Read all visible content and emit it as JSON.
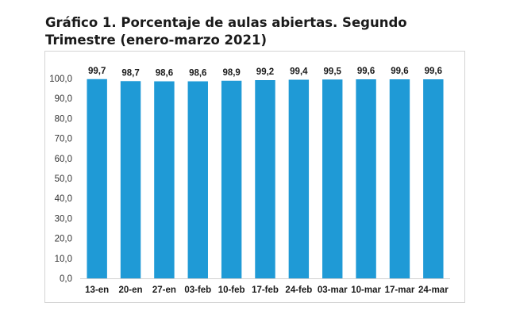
{
  "chart_data": {
    "type": "bar",
    "title": "Gráfico 1. Porcentaje de aulas abiertas. Segundo Trimestre (enero-marzo 2021)",
    "categories": [
      "13-en",
      "20-en",
      "27-en",
      "03-feb",
      "10-feb",
      "17-feb",
      "24-feb",
      "03-mar",
      "10-mar",
      "17-mar",
      "24-mar"
    ],
    "values": [
      99.7,
      98.7,
      98.6,
      98.6,
      98.9,
      99.2,
      99.4,
      99.5,
      99.6,
      99.6,
      99.6
    ],
    "data_labels": [
      "99,7",
      "98,7",
      "98,6",
      "98,6",
      "98,9",
      "99,2",
      "99,4",
      "99,5",
      "99,6",
      "99,6",
      "99,6"
    ],
    "ylim": [
      0,
      100
    ],
    "yticks": [
      0,
      10,
      20,
      30,
      40,
      50,
      60,
      70,
      80,
      90,
      100
    ],
    "ytick_labels": [
      "0,0",
      "10,0",
      "20,0",
      "30,0",
      "40,0",
      "50,0",
      "60,0",
      "70,0",
      "80,0",
      "90,0",
      "100,0"
    ],
    "xlabel": "",
    "ylabel": "",
    "bar_color": "#1f9ad6",
    "grid": false,
    "legend": "none"
  }
}
